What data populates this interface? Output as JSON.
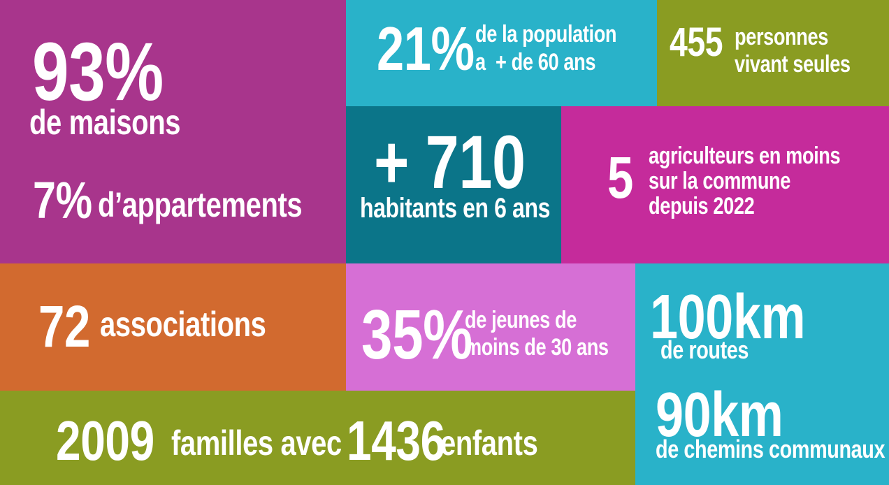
{
  "colors": {
    "purple": "#a8358c",
    "cyan": "#29b2c9",
    "olive": "#8a9c22",
    "teal": "#0b7589",
    "magenta": "#c52b9b",
    "orange": "#d26a2f",
    "pink": "#d66fd5"
  },
  "housing": {
    "big": "93%",
    "big_label": "de maisons",
    "small": "7%",
    "small_label": "d’appartements"
  },
  "seniors": {
    "value": "21%",
    "line1": "de la population",
    "line2": "a  + de 60 ans"
  },
  "alone": {
    "value": "455",
    "line1": "personnes",
    "line2": "vivant seules"
  },
  "growth": {
    "value": "+ 710",
    "label": "habitants en 6 ans"
  },
  "farmers": {
    "value": "5",
    "line1": "agriculteurs en moins",
    "line2": "sur la commune",
    "line3": "depuis 2022"
  },
  "associations": {
    "value": "72",
    "label": "associations"
  },
  "youth": {
    "value": "35%",
    "line1": "de jeunes de",
    "line2": "moins de 30 ans"
  },
  "roads": {
    "value": "100km",
    "label": "de routes",
    "value2": "90km",
    "label2": "de chemins communaux"
  },
  "families": {
    "value": "2009",
    "label": "familles avec",
    "value2": "1436",
    "label2": "enfants"
  }
}
